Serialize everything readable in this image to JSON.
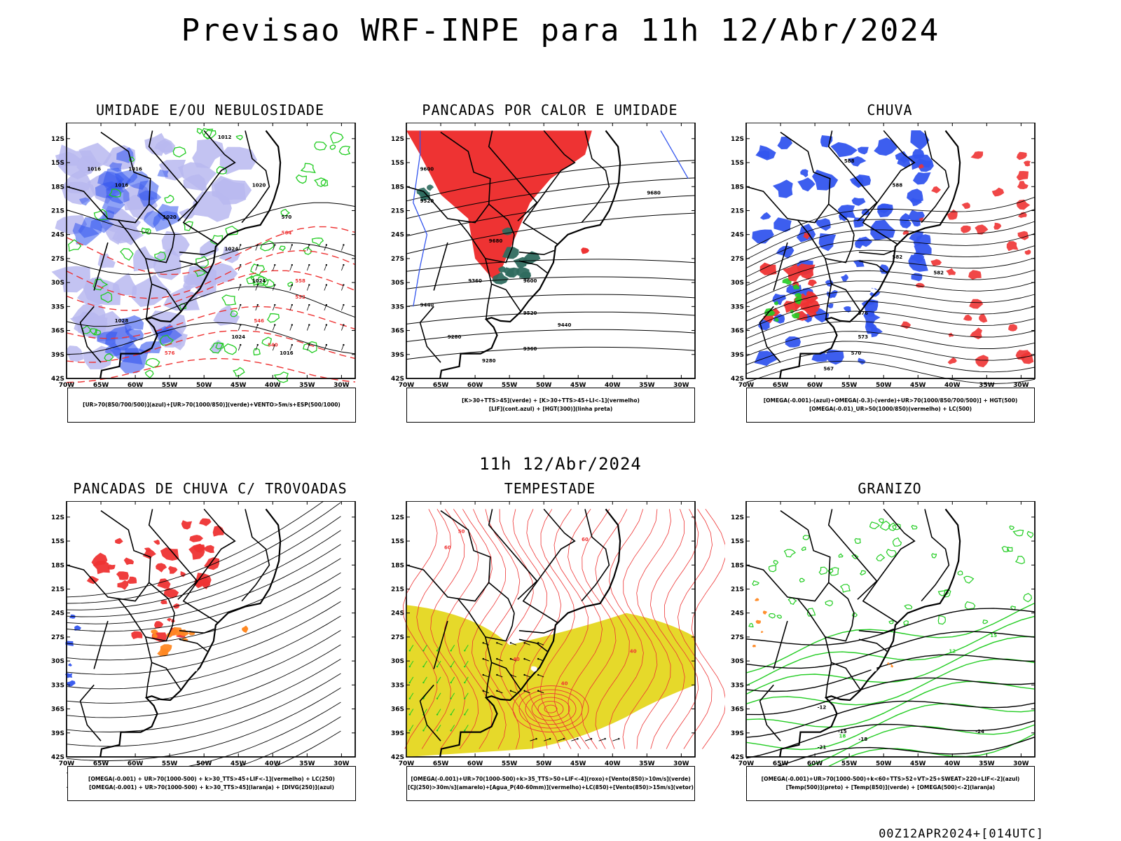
{
  "title": "Previsao WRF-INPE  para 11h 12/Abr/2024",
  "mid_date": "11h 12/Abr/2024",
  "footer": "00Z12APR2024+[014UTC]",
  "lat_ticks": [
    "12S",
    "15S",
    "18S",
    "21S",
    "24S",
    "27S",
    "30S",
    "33S",
    "36S",
    "39S",
    "42S"
  ],
  "lon_ticks": [
    "70W",
    "65W",
    "60W",
    "55W",
    "50W",
    "45W",
    "40W",
    "35W",
    "30W"
  ],
  "colors": {
    "blue": "#3355ee",
    "lavender": "#b8b8f0",
    "green": "#22cc22",
    "red": "#ee3333",
    "orange": "#ff8822",
    "yellow": "#e6d92a",
    "teal": "#2f6b5f",
    "black": "#000000"
  },
  "panels": [
    {
      "title": "UMIDADE E/OU NEBULOSIDADE",
      "caption": [
        "[UR>70(850/700/500)](azul)+[UR>70(1000/850)](verde)+VENTO>5m/s+ESP(500/1000)"
      ],
      "contour_labels": [
        "1012",
        "1016",
        "1016",
        "1016",
        "1020",
        "1020",
        "1024",
        "1024",
        "1028",
        "1024",
        "1016",
        "570",
        "564",
        "558",
        "552",
        "546",
        "540",
        "576"
      ]
    },
    {
      "title": "PANCADAS POR CALOR E UMIDADE",
      "caption": [
        "[K>30+TTS>45](verde) + [K>30+TTS>45+LI<-1](vermelho)",
        "[LIF](cont.azul) + [HGT(300)](linha preta)"
      ],
      "contour_labels": [
        "9680",
        "9680",
        "9600",
        "9520",
        "9440",
        "9360",
        "9280",
        "9600",
        "9520",
        "9440",
        "9360",
        "9280"
      ]
    },
    {
      "title": "CHUVA",
      "caption": [
        "[OMEGA(-0.001)-(azul)+OMEGA(-0.3)-(verde)+UR>70(1000/850/700/500)] + HGT(500)",
        "[OMEGA(-0.01)_UR>50(1000/850)(vermelho) + LC(500)"
      ],
      "contour_labels": [
        "588",
        "588",
        "582",
        "582",
        "576",
        "573",
        "570",
        "567"
      ]
    },
    {
      "title": "PANCADAS DE CHUVA C/ TROVOADAS",
      "caption": [
        "[OMEGA(-0.001) + UR>70(1000-500) + k>30_TTS>45+LIF<-1](vermelho) + LC(250)",
        "[OMEGA(-0.001) + UR>70(1000-500) + k>30_TTS>45](laranja) + [DIVG(250)](azul)"
      ],
      "contour_labels": []
    },
    {
      "title": "TEMPESTADE",
      "caption": [
        "[OMEGA(-0.001)+UR>70(1000-500)+k>35_TTS>50+LIF<-4](roxo)+[Vento(850)>10m/s](verde)",
        "[CJ(250)>30m/s](amarelo)+[Agua_P(40-60mm)](vermelho)+LC(850)+[Vento(850)>15m/s](vetor)"
      ],
      "contour_labels": [
        "40",
        "40",
        "40",
        "50",
        "60",
        "60"
      ]
    },
    {
      "title": "GRANIZO",
      "caption": [
        "[OMEGA(-0.001)+UR>70(1000-500)+k<60+TTS>52+VT>25+SWEAT>220+LIF<-2](azul)",
        "[Temp(500)](preto) + [Temp(850)](verde) + [OMEGA(500)<-2](laranja)"
      ],
      "contour_labels": [
        "-12",
        "-15",
        "-18",
        "-21",
        "-24",
        "12",
        "15",
        "18"
      ]
    }
  ]
}
